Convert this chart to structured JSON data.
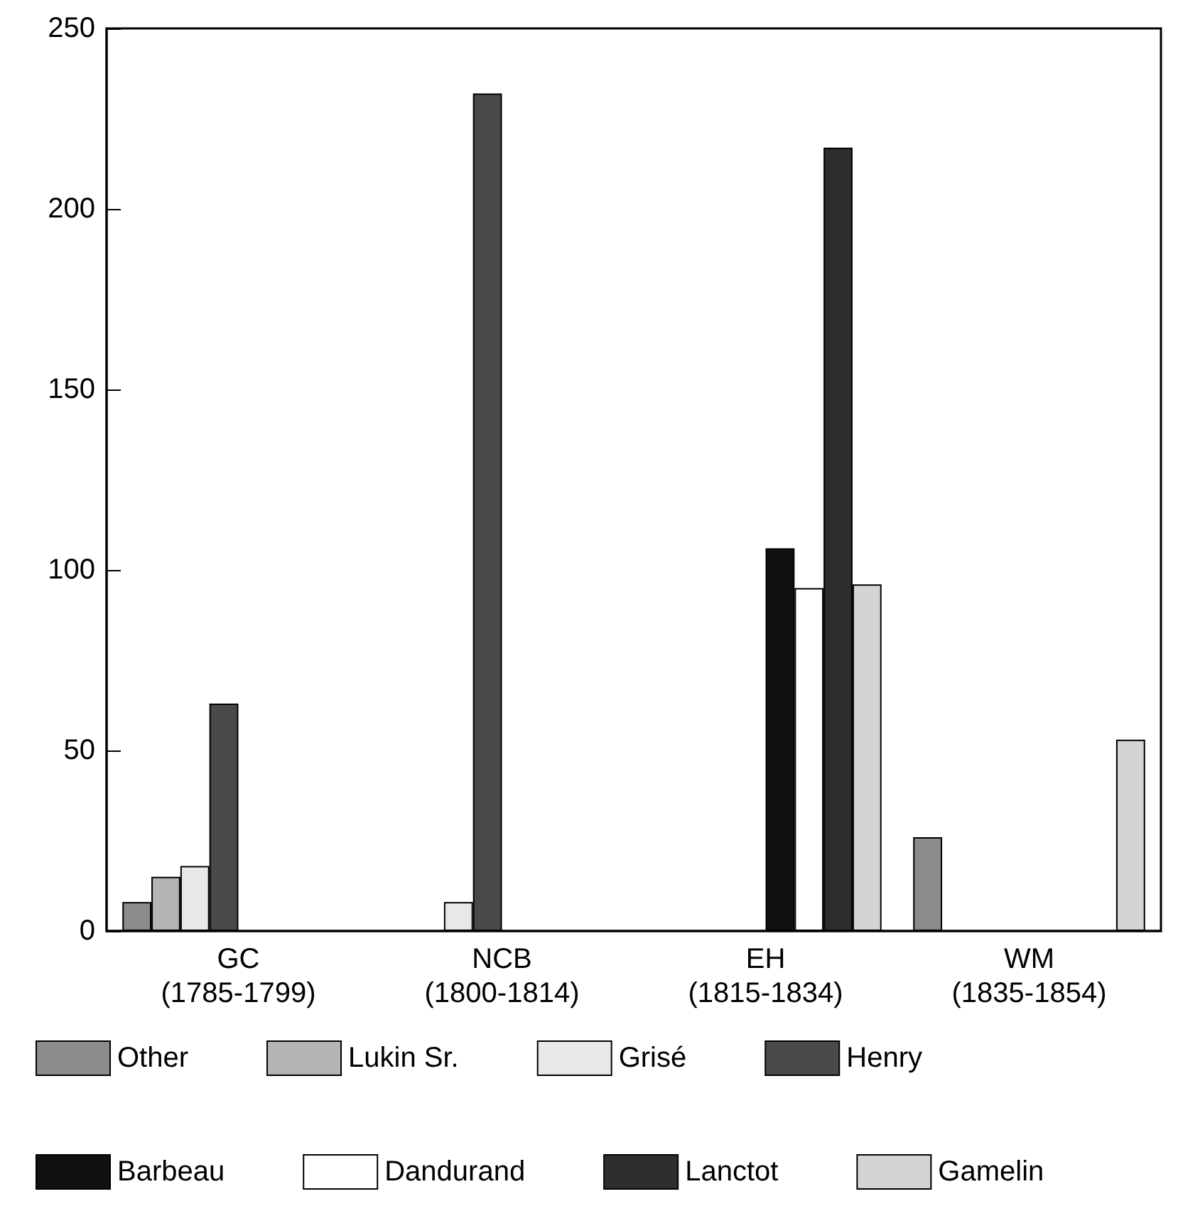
{
  "chart_data": {
    "type": "bar",
    "categories": [
      "GC\n(1785-1799)",
      "NCB\n(1800-1814)",
      "EH\n(1815-1834)",
      "WM\n(1835-1854)"
    ],
    "series": [
      {
        "name": "Other",
        "color": "#8c8c8c",
        "values": [
          8,
          null,
          null,
          26
        ]
      },
      {
        "name": "Lukin Sr.",
        "color": "#b4b4b4",
        "values": [
          15,
          null,
          null,
          null
        ]
      },
      {
        "name": "Grisé",
        "color": "#e8e8e8",
        "values": [
          18,
          8,
          null,
          null
        ]
      },
      {
        "name": "Henry",
        "color": "#4a4a4a",
        "values": [
          63,
          232,
          null,
          null
        ]
      },
      {
        "name": "Barbeau",
        "color": "#111111",
        "values": [
          null,
          null,
          106,
          null
        ]
      },
      {
        "name": "Dandurand",
        "color": "#ffffff",
        "values": [
          null,
          null,
          95,
          null
        ]
      },
      {
        "name": "Lanctot",
        "color": "#2e2e2e",
        "values": [
          null,
          null,
          217,
          null
        ]
      },
      {
        "name": "Gamelin",
        "color": "#d4d4d4",
        "values": [
          null,
          null,
          96,
          53
        ]
      }
    ],
    "ylim": [
      0,
      250
    ],
    "yticks": [
      0,
      50,
      100,
      150,
      200,
      250
    ],
    "grid": false,
    "legend": "bottom"
  }
}
